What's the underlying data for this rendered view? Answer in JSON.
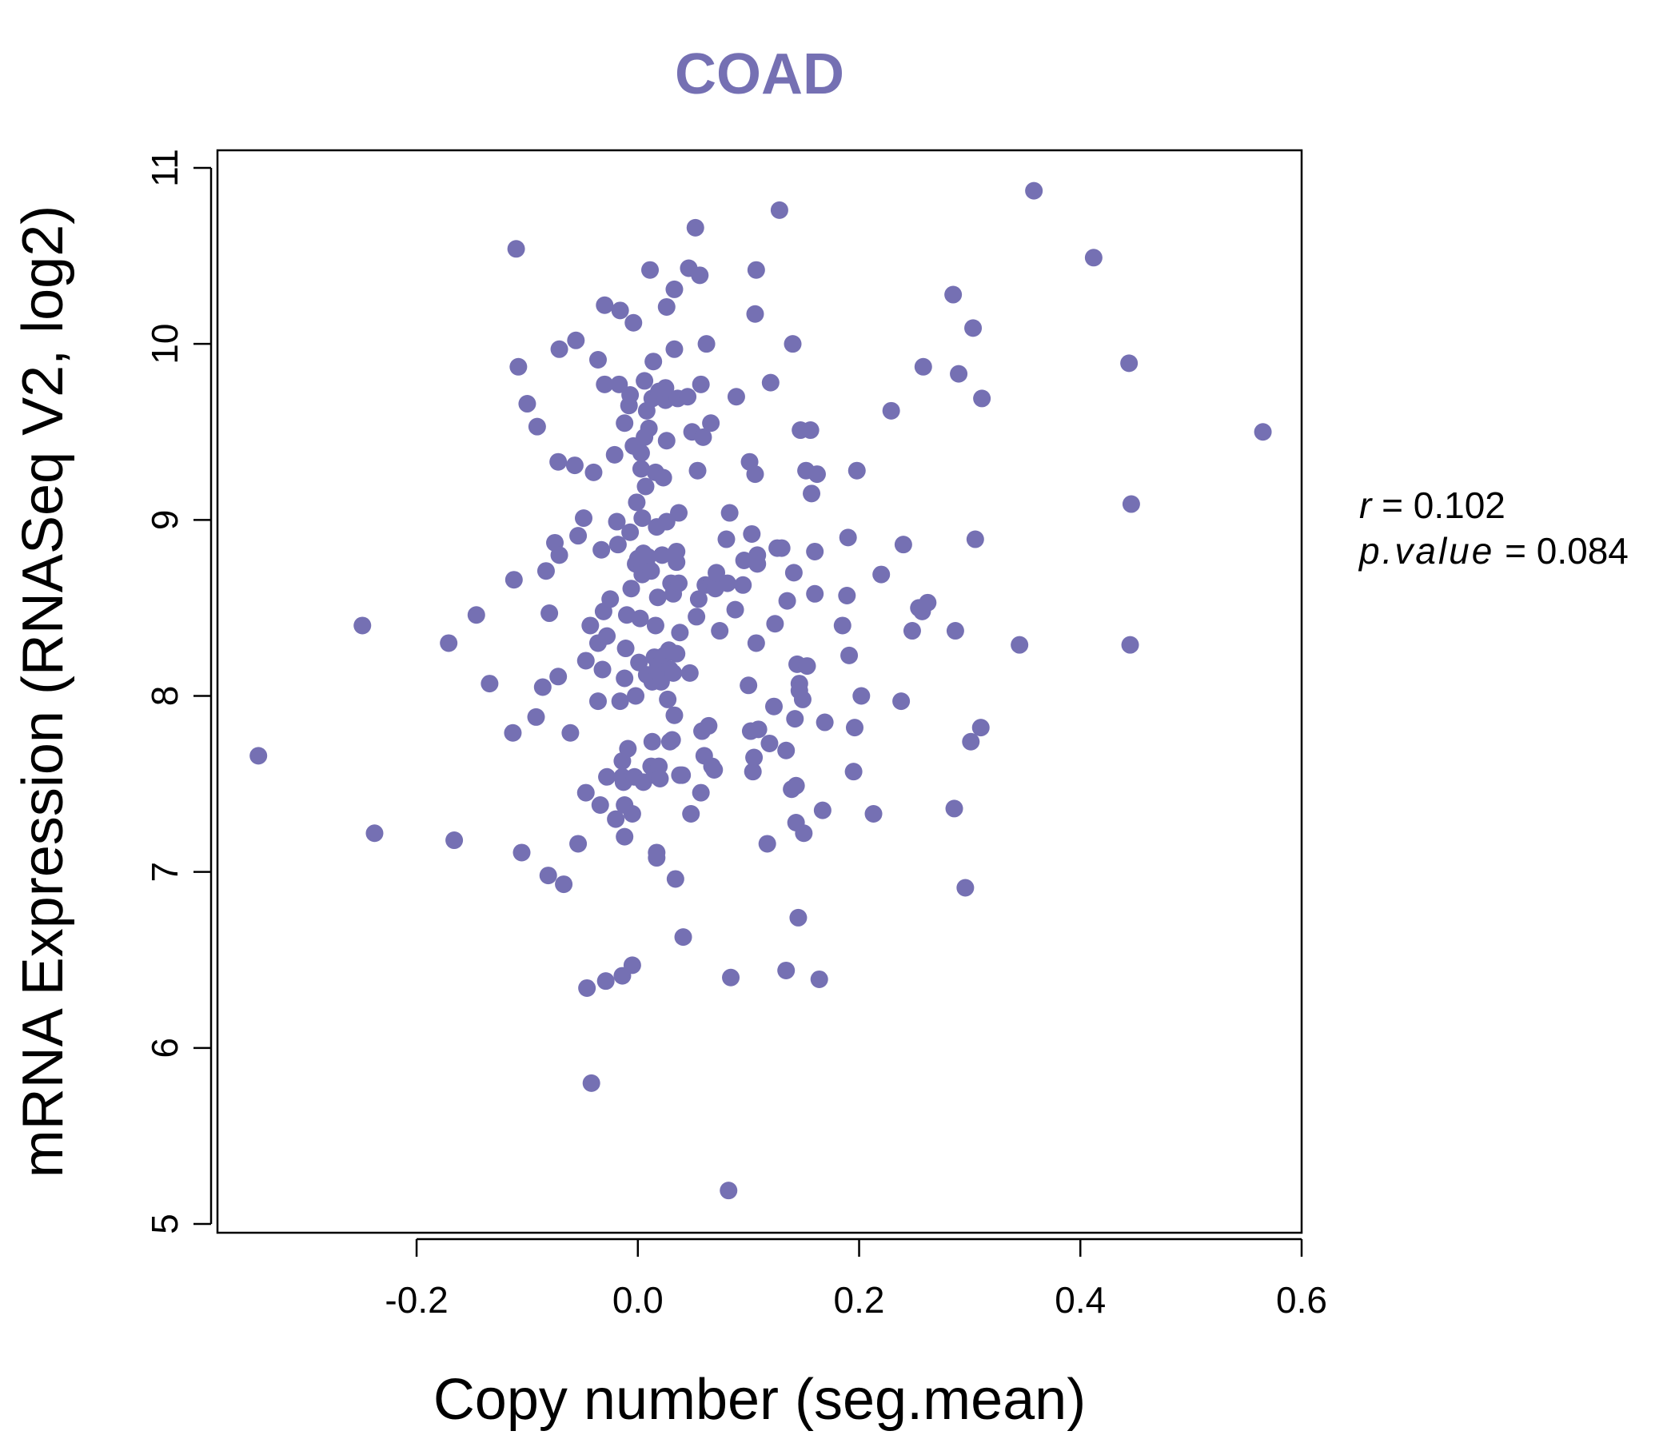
{
  "chart_data": {
    "type": "scatter",
    "title": "COAD",
    "xlabel": "Copy number (seg.mean)",
    "ylabel": "mRNA Expression (RNASeq V2, log2)",
    "xlim": [
      -0.38,
      0.6
    ],
    "ylim": [
      4.95,
      11.1
    ],
    "x_ticks": [
      -0.2,
      0.0,
      0.2,
      0.4,
      0.6
    ],
    "x_tick_labels": [
      "-0.2",
      "0.0",
      "0.2",
      "0.4",
      "0.6"
    ],
    "y_ticks": [
      5,
      6,
      7,
      8,
      9,
      10,
      11
    ],
    "y_tick_labels": [
      "5",
      "6",
      "7",
      "8",
      "9",
      "10",
      "11"
    ],
    "grid": false,
    "color": "#7570b3",
    "annotations": {
      "r_symbol": "r",
      "r_value": "0.102",
      "p_symbol": "p.value",
      "p_value": "0.084"
    },
    "points": [
      [
        -0.343,
        7.66
      ],
      [
        -0.249,
        8.4
      ],
      [
        -0.238,
        7.22
      ],
      [
        -0.171,
        8.3
      ],
      [
        -0.166,
        7.18
      ],
      [
        -0.146,
        8.46
      ],
      [
        -0.134,
        8.07
      ],
      [
        -0.113,
        7.79
      ],
      [
        -0.112,
        8.66
      ],
      [
        -0.11,
        10.54
      ],
      [
        -0.108,
        9.87
      ],
      [
        -0.105,
        7.11
      ],
      [
        -0.1,
        9.66
      ],
      [
        -0.092,
        7.88
      ],
      [
        -0.091,
        9.53
      ],
      [
        -0.086,
        8.05
      ],
      [
        -0.083,
        8.71
      ],
      [
        -0.081,
        6.98
      ],
      [
        -0.08,
        8.47
      ],
      [
        -0.075,
        8.87
      ],
      [
        -0.072,
        9.33
      ],
      [
        -0.071,
        9.97
      ],
      [
        -0.071,
        8.8
      ],
      [
        -0.072,
        8.11
      ],
      [
        -0.067,
        6.93
      ],
      [
        -0.061,
        7.79
      ],
      [
        -0.057,
        9.31
      ],
      [
        -0.056,
        10.02
      ],
      [
        -0.054,
        7.16
      ],
      [
        -0.054,
        8.91
      ],
      [
        -0.049,
        9.01
      ],
      [
        -0.047,
        8.2
      ],
      [
        -0.047,
        7.45
      ],
      [
        -0.046,
        6.34
      ],
      [
        -0.043,
        8.4
      ],
      [
        -0.042,
        5.8
      ],
      [
        -0.04,
        9.27
      ],
      [
        -0.036,
        8.3
      ],
      [
        -0.036,
        7.97
      ],
      [
        -0.036,
        9.91
      ],
      [
        -0.034,
        7.38
      ],
      [
        -0.033,
        8.83
      ],
      [
        -0.032,
        8.15
      ],
      [
        -0.031,
        8.48
      ],
      [
        -0.03,
        9.77
      ],
      [
        -0.03,
        10.22
      ],
      [
        -0.029,
        6.38
      ],
      [
        -0.028,
        8.34
      ],
      [
        -0.028,
        7.54
      ],
      [
        -0.025,
        8.55
      ],
      [
        -0.021,
        9.37
      ],
      [
        -0.02,
        7.3
      ],
      [
        -0.019,
        8.99
      ],
      [
        -0.018,
        8.86
      ],
      [
        -0.017,
        9.77
      ],
      [
        -0.016,
        7.97
      ],
      [
        -0.016,
        10.19
      ],
      [
        -0.014,
        7.54
      ],
      [
        -0.014,
        6.41
      ],
      [
        -0.014,
        7.63
      ],
      [
        -0.013,
        7.51
      ],
      [
        -0.012,
        7.38
      ],
      [
        -0.012,
        7.2
      ],
      [
        -0.012,
        8.1
      ],
      [
        -0.012,
        9.55
      ],
      [
        -0.011,
        8.27
      ],
      [
        -0.01,
        8.46
      ],
      [
        -0.009,
        7.7
      ],
      [
        -0.008,
        9.65
      ],
      [
        -0.007,
        9.71
      ],
      [
        -0.007,
        8.93
      ],
      [
        -0.006,
        8.61
      ],
      [
        -0.005,
        7.33
      ],
      [
        -0.004,
        9.42
      ],
      [
        -0.004,
        10.12
      ],
      [
        -0.005,
        6.47
      ],
      [
        -0.003,
        7.54
      ],
      [
        -0.002,
        8.0
      ],
      [
        -0.002,
        8.75
      ],
      [
        -0.001,
        9.1
      ],
      [
        0.0,
        8.78
      ],
      [
        0.001,
        8.19
      ],
      [
        0.002,
        8.44
      ],
      [
        0.003,
        9.29
      ],
      [
        0.003,
        9.38
      ],
      [
        0.004,
        8.69
      ],
      [
        0.004,
        9.01
      ],
      [
        0.005,
        8.81
      ],
      [
        0.005,
        7.51
      ],
      [
        0.006,
        9.47
      ],
      [
        0.006,
        9.79
      ],
      [
        0.007,
        9.19
      ],
      [
        0.008,
        8.12
      ],
      [
        0.008,
        9.62
      ],
      [
        0.009,
        8.73
      ],
      [
        0.009,
        8.79
      ],
      [
        0.01,
        9.52
      ],
      [
        0.011,
        10.42
      ],
      [
        0.012,
        7.6
      ],
      [
        0.012,
        8.71
      ],
      [
        0.013,
        8.08
      ],
      [
        0.013,
        7.74
      ],
      [
        0.013,
        9.69
      ],
      [
        0.014,
        9.9
      ],
      [
        0.015,
        8.22
      ],
      [
        0.015,
        7.55
      ],
      [
        0.016,
        9.27
      ],
      [
        0.016,
        8.4
      ],
      [
        0.017,
        8.96
      ],
      [
        0.017,
        7.11
      ],
      [
        0.017,
        7.08
      ],
      [
        0.018,
        8.17
      ],
      [
        0.018,
        8.56
      ],
      [
        0.019,
        7.6
      ],
      [
        0.019,
        9.73
      ],
      [
        0.02,
        7.53
      ],
      [
        0.021,
        8.08
      ],
      [
        0.021,
        8.11
      ],
      [
        0.022,
        8.8
      ],
      [
        0.023,
        9.24
      ],
      [
        0.024,
        8.23
      ],
      [
        0.025,
        9.68
      ],
      [
        0.025,
        9.75
      ],
      [
        0.026,
        10.21
      ],
      [
        0.026,
        9.45
      ],
      [
        0.026,
        8.99
      ],
      [
        0.027,
        7.98
      ],
      [
        0.028,
        8.26
      ],
      [
        0.029,
        8.15
      ],
      [
        0.029,
        7.74
      ],
      [
        0.03,
        8.64
      ],
      [
        0.031,
        7.75
      ],
      [
        0.032,
        8.58
      ],
      [
        0.032,
        8.13
      ],
      [
        0.033,
        9.97
      ],
      [
        0.033,
        10.31
      ],
      [
        0.033,
        7.89
      ],
      [
        0.034,
        6.96
      ],
      [
        0.035,
        8.24
      ],
      [
        0.035,
        8.76
      ],
      [
        0.035,
        8.82
      ],
      [
        0.036,
        9.69
      ],
      [
        0.037,
        8.64
      ],
      [
        0.037,
        9.04
      ],
      [
        0.038,
        7.55
      ],
      [
        0.038,
        8.36
      ],
      [
        0.04,
        7.55
      ],
      [
        0.041,
        6.63
      ],
      [
        0.045,
        9.7
      ],
      [
        0.046,
        10.43
      ],
      [
        0.047,
        8.13
      ],
      [
        0.048,
        7.33
      ],
      [
        0.049,
        9.5
      ],
      [
        0.052,
        10.66
      ],
      [
        0.053,
        8.45
      ],
      [
        0.054,
        9.28
      ],
      [
        0.055,
        8.55
      ],
      [
        0.056,
        10.39
      ],
      [
        0.057,
        9.77
      ],
      [
        0.057,
        7.45
      ],
      [
        0.058,
        7.8
      ],
      [
        0.059,
        9.47
      ],
      [
        0.06,
        7.66
      ],
      [
        0.061,
        8.63
      ],
      [
        0.062,
        10.0
      ],
      [
        0.064,
        7.83
      ],
      [
        0.066,
        9.55
      ],
      [
        0.066,
        8.63
      ],
      [
        0.067,
        7.6
      ],
      [
        0.069,
        7.58
      ],
      [
        0.07,
        8.61
      ],
      [
        0.071,
        8.7
      ],
      [
        0.074,
        8.37
      ],
      [
        0.08,
        8.89
      ],
      [
        0.081,
        8.64
      ],
      [
        0.082,
        5.19
      ],
      [
        0.083,
        9.04
      ],
      [
        0.084,
        6.4
      ],
      [
        0.088,
        8.49
      ],
      [
        0.089,
        9.7
      ],
      [
        0.095,
        8.63
      ],
      [
        0.096,
        8.77
      ],
      [
        0.1,
        8.06
      ],
      [
        0.101,
        9.33
      ],
      [
        0.102,
        7.8
      ],
      [
        0.103,
        8.92
      ],
      [
        0.104,
        7.57
      ],
      [
        0.105,
        7.65
      ],
      [
        0.106,
        10.17
      ],
      [
        0.106,
        9.26
      ],
      [
        0.107,
        10.42
      ],
      [
        0.107,
        8.3
      ],
      [
        0.108,
        8.8
      ],
      [
        0.108,
        8.75
      ],
      [
        0.109,
        7.81
      ],
      [
        0.117,
        7.16
      ],
      [
        0.119,
        7.73
      ],
      [
        0.12,
        9.78
      ],
      [
        0.123,
        7.94
      ],
      [
        0.124,
        8.41
      ],
      [
        0.126,
        8.84
      ],
      [
        0.128,
        10.76
      ],
      [
        0.13,
        8.84
      ],
      [
        0.134,
        6.44
      ],
      [
        0.134,
        7.69
      ],
      [
        0.135,
        8.54
      ],
      [
        0.139,
        7.47
      ],
      [
        0.14,
        10.0
      ],
      [
        0.141,
        8.7
      ],
      [
        0.142,
        7.87
      ],
      [
        0.143,
        7.49
      ],
      [
        0.143,
        7.28
      ],
      [
        0.144,
        8.18
      ],
      [
        0.145,
        6.74
      ],
      [
        0.146,
        8.07
      ],
      [
        0.146,
        8.03
      ],
      [
        0.147,
        9.51
      ],
      [
        0.149,
        7.98
      ],
      [
        0.15,
        7.22
      ],
      [
        0.152,
        9.28
      ],
      [
        0.153,
        8.17
      ],
      [
        0.156,
        9.51
      ],
      [
        0.157,
        9.15
      ],
      [
        0.16,
        8.82
      ],
      [
        0.16,
        8.58
      ],
      [
        0.162,
        9.26
      ],
      [
        0.164,
        6.39
      ],
      [
        0.167,
        7.35
      ],
      [
        0.169,
        7.85
      ],
      [
        0.185,
        8.4
      ],
      [
        0.189,
        8.57
      ],
      [
        0.19,
        8.9
      ],
      [
        0.191,
        8.23
      ],
      [
        0.195,
        7.57
      ],
      [
        0.196,
        7.82
      ],
      [
        0.198,
        9.28
      ],
      [
        0.202,
        8.0
      ],
      [
        0.213,
        7.33
      ],
      [
        0.22,
        8.69
      ],
      [
        0.229,
        9.62
      ],
      [
        0.238,
        7.97
      ],
      [
        0.24,
        8.86
      ],
      [
        0.248,
        8.37
      ],
      [
        0.254,
        8.5
      ],
      [
        0.257,
        8.48
      ],
      [
        0.258,
        9.87
      ],
      [
        0.262,
        8.53
      ],
      [
        0.285,
        10.28
      ],
      [
        0.286,
        7.36
      ],
      [
        0.287,
        8.37
      ],
      [
        0.29,
        9.83
      ],
      [
        0.296,
        6.91
      ],
      [
        0.301,
        7.74
      ],
      [
        0.303,
        10.09
      ],
      [
        0.305,
        8.89
      ],
      [
        0.31,
        7.82
      ],
      [
        0.311,
        9.69
      ],
      [
        0.345,
        8.29
      ],
      [
        0.358,
        10.87
      ],
      [
        0.412,
        10.49
      ],
      [
        0.444,
        9.89
      ],
      [
        0.445,
        8.29
      ],
      [
        0.446,
        9.09
      ],
      [
        0.565,
        9.5
      ]
    ]
  }
}
